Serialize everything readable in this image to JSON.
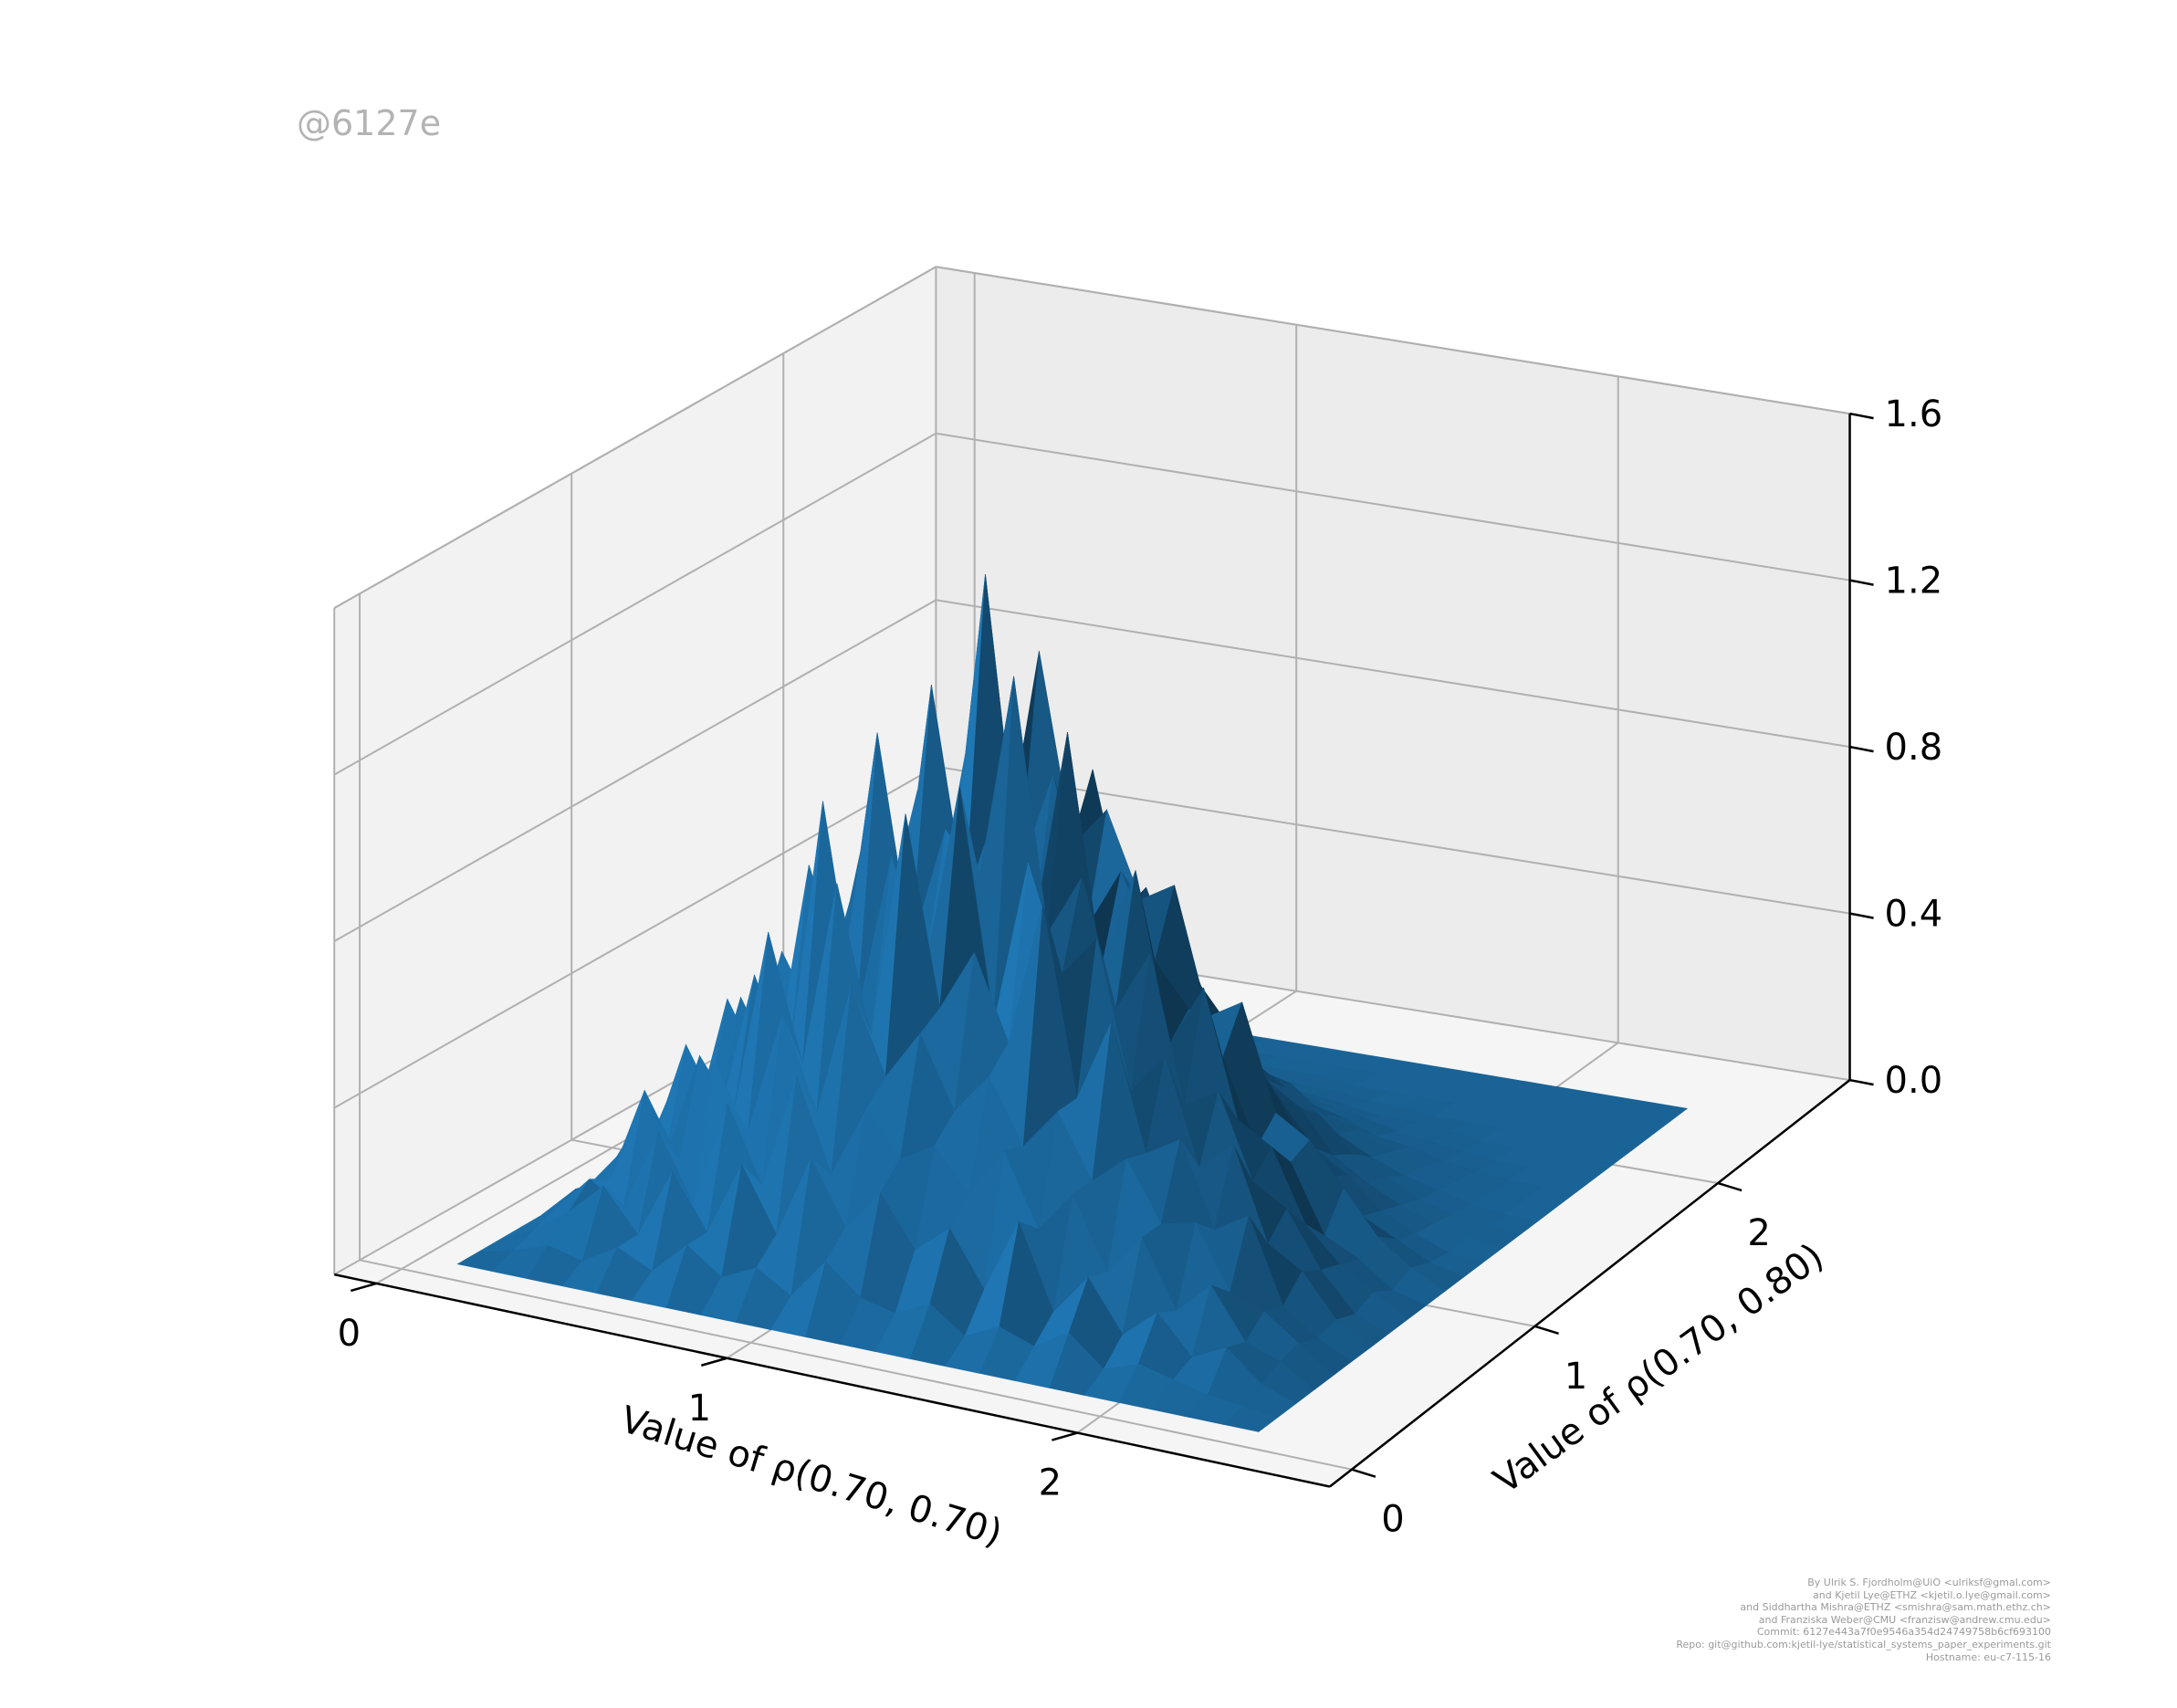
{
  "watermark": "@6127e",
  "credits": [
    "By Ulrik S. Fjordholm@UiO <ulriksf@gmal.com>",
    "and Kjetil Lye@ETHZ <kjetil.o.lye@gmail.com>",
    "and Siddhartha Mishra@ETHZ <smishra@sam.math.ethz.ch>",
    "and Franziska Weber@CMU <franzisw@andrew.cmu.edu>",
    "Commit: 6127e443a7f0e9546a354d24749758b6cf693100",
    "Repo: git@github.com:kjetil-lye/statistical_systems_paper_experiments.git",
    "Hostname: eu-c7-115-16"
  ],
  "colors": {
    "surface": "#1f77b4",
    "pane": "#f2f2f2",
    "grid": "#b0b0b0",
    "axis": "#000000",
    "watermark": "#b3b3b3",
    "credits": "#9a9a9a"
  },
  "chart_data": {
    "type": "surface3d",
    "title": "",
    "xlabel": "Value of ρ(0.70, 0.70)",
    "ylabel": "Value of ρ(0.70, 0.80)",
    "zlabel": "",
    "xlim": [
      0,
      2.6
    ],
    "ylim": [
      0,
      2.6
    ],
    "zlim": [
      0,
      1.6
    ],
    "x_ticks": [
      "0",
      "1",
      "2"
    ],
    "y_ticks": [
      "0",
      "1",
      "2"
    ],
    "z_ticks": [
      "0.0",
      "0.4",
      "0.8",
      "1.2",
      "1.6"
    ],
    "grid": true,
    "x": [
      0.1,
      0.2,
      0.3,
      0.4,
      0.5,
      0.6,
      0.7,
      0.8,
      0.9,
      1.0,
      1.1,
      1.2,
      1.3,
      1.4,
      1.5,
      1.6,
      1.7,
      1.8,
      1.9,
      2.0,
      2.1,
      2.2,
      2.3,
      2.4
    ],
    "y": [
      0.1,
      0.2,
      0.3,
      0.4,
      0.5,
      0.6,
      0.7,
      0.8,
      0.9,
      1.0,
      1.1,
      1.2,
      1.3,
      1.4,
      1.5,
      1.6,
      1.7,
      1.8,
      1.9,
      2.0,
      2.1,
      2.2,
      2.3,
      2.4
    ],
    "z": [
      [
        0.0,
        0.0,
        0.0,
        0.0,
        0.0,
        0.0,
        0.0,
        0.0,
        0.0,
        0.0,
        0.0,
        0.0,
        0.0,
        0.0,
        0.0,
        0.0,
        0.0,
        0.0,
        0.0,
        0.0,
        0.0,
        0.0,
        0.0,
        0.0
      ],
      [
        0.0,
        0.02,
        0.05,
        0.03,
        0.08,
        0.04,
        0.12,
        0.06,
        0.1,
        0.05,
        0.15,
        0.08,
        0.06,
        0.1,
        0.04,
        0.08,
        0.05,
        0.1,
        0.03,
        0.06,
        0.04,
        0.02,
        0.01,
        0.0
      ],
      [
        0.0,
        0.04,
        0.1,
        0.18,
        0.08,
        0.25,
        0.12,
        0.3,
        0.15,
        0.35,
        0.2,
        0.3,
        0.18,
        0.25,
        0.12,
        0.3,
        0.1,
        0.2,
        0.08,
        0.15,
        0.06,
        0.1,
        0.03,
        0.0
      ],
      [
        0.0,
        0.06,
        0.15,
        0.1,
        0.3,
        0.14,
        0.4,
        0.22,
        0.5,
        0.28,
        0.45,
        0.35,
        0.4,
        0.3,
        0.42,
        0.25,
        0.35,
        0.18,
        0.28,
        0.12,
        0.2,
        0.08,
        0.05,
        0.0
      ],
      [
        0.0,
        0.08,
        0.12,
        0.35,
        0.2,
        0.45,
        0.3,
        0.6,
        0.38,
        0.7,
        0.5,
        0.62,
        0.45,
        0.55,
        0.4,
        0.5,
        0.35,
        0.42,
        0.28,
        0.3,
        0.15,
        0.12,
        0.06,
        0.0
      ],
      [
        0.0,
        0.05,
        0.2,
        0.15,
        0.42,
        0.3,
        0.75,
        0.45,
        0.9,
        0.55,
        1.1,
        0.65,
        0.8,
        0.6,
        0.95,
        0.5,
        0.7,
        0.4,
        0.45,
        0.25,
        0.3,
        0.1,
        0.04,
        0.0
      ],
      [
        0.0,
        0.1,
        0.14,
        0.4,
        0.25,
        0.6,
        0.4,
        1.05,
        0.55,
        0.95,
        0.7,
        1.15,
        0.6,
        1.0,
        0.75,
        0.85,
        0.5,
        0.6,
        0.35,
        0.42,
        0.2,
        0.15,
        0.05,
        0.0
      ],
      [
        0.0,
        0.04,
        0.25,
        0.2,
        0.5,
        0.35,
        0.85,
        0.6,
        1.2,
        0.7,
        1.0,
        0.9,
        1.4,
        0.8,
        0.95,
        0.65,
        0.8,
        0.45,
        0.5,
        0.3,
        0.25,
        0.12,
        0.03,
        0.0
      ],
      [
        0.0,
        0.08,
        0.12,
        0.45,
        0.3,
        0.55,
        0.5,
        0.9,
        0.65,
        1.3,
        0.8,
        1.05,
        0.75,
        1.25,
        0.7,
        0.95,
        0.55,
        0.7,
        0.4,
        0.35,
        0.18,
        0.1,
        0.05,
        0.0
      ],
      [
        0.0,
        0.05,
        0.2,
        0.25,
        0.55,
        0.4,
        0.7,
        0.65,
        1.0,
        0.8,
        1.55,
        0.85,
        1.1,
        0.75,
        0.9,
        0.7,
        0.6,
        0.5,
        0.3,
        0.28,
        0.12,
        0.08,
        0.02,
        0.0
      ],
      [
        0.0,
        0.1,
        0.15,
        0.38,
        0.3,
        0.6,
        0.45,
        0.8,
        0.7,
        1.15,
        0.85,
        1.35,
        0.9,
        1.0,
        0.8,
        0.85,
        0.55,
        0.6,
        0.35,
        0.3,
        0.2,
        0.1,
        0.04,
        0.0
      ],
      [
        0.0,
        0.06,
        0.22,
        0.2,
        0.45,
        0.35,
        0.65,
        0.55,
        0.85,
        0.7,
        1.0,
        0.75,
        1.05,
        0.7,
        0.75,
        0.6,
        0.5,
        0.4,
        0.28,
        0.18,
        0.1,
        0.06,
        0.02,
        0.0
      ],
      [
        0.0,
        0.04,
        0.1,
        0.3,
        0.25,
        0.42,
        0.35,
        0.6,
        0.5,
        0.8,
        0.6,
        0.9,
        0.65,
        0.75,
        0.55,
        0.5,
        0.4,
        0.3,
        0.2,
        0.15,
        0.08,
        0.04,
        0.01,
        0.0
      ],
      [
        0.0,
        0.06,
        0.15,
        0.18,
        0.35,
        0.3,
        0.5,
        0.45,
        0.65,
        0.55,
        0.75,
        0.6,
        0.7,
        0.5,
        0.45,
        0.4,
        0.3,
        0.25,
        0.15,
        0.1,
        0.06,
        0.03,
        0.02,
        0.0
      ],
      [
        0.0,
        0.03,
        0.08,
        0.2,
        0.22,
        0.35,
        0.3,
        0.45,
        0.4,
        0.55,
        0.5,
        0.6,
        0.45,
        0.55,
        0.35,
        0.3,
        0.25,
        0.2,
        0.12,
        0.08,
        0.04,
        0.02,
        0.01,
        0.0
      ],
      [
        0.0,
        0.05,
        0.1,
        0.12,
        0.25,
        0.2,
        0.35,
        0.3,
        0.45,
        0.4,
        0.5,
        0.42,
        0.4,
        0.35,
        0.3,
        0.22,
        0.18,
        0.12,
        0.08,
        0.05,
        0.03,
        0.01,
        0.0,
        0.0
      ],
      [
        0.0,
        0.02,
        0.06,
        0.1,
        0.15,
        0.18,
        0.2,
        0.28,
        0.25,
        0.35,
        0.3,
        0.32,
        0.28,
        0.25,
        0.2,
        0.18,
        0.12,
        0.1,
        0.06,
        0.04,
        0.02,
        0.01,
        0.0,
        0.0
      ],
      [
        0.0,
        0.03,
        0.05,
        0.08,
        0.1,
        0.14,
        0.15,
        0.2,
        0.18,
        0.22,
        0.2,
        0.22,
        0.18,
        0.16,
        0.12,
        0.1,
        0.08,
        0.05,
        0.04,
        0.02,
        0.01,
        0.0,
        0.0,
        0.0
      ],
      [
        0.0,
        0.01,
        0.03,
        0.05,
        0.06,
        0.08,
        0.1,
        0.12,
        0.1,
        0.14,
        0.12,
        0.13,
        0.1,
        0.09,
        0.08,
        0.06,
        0.05,
        0.03,
        0.02,
        0.01,
        0.0,
        0.0,
        0.0,
        0.0
      ],
      [
        0.0,
        0.01,
        0.02,
        0.03,
        0.04,
        0.05,
        0.05,
        0.07,
        0.06,
        0.08,
        0.07,
        0.07,
        0.06,
        0.05,
        0.04,
        0.03,
        0.02,
        0.02,
        0.01,
        0.0,
        0.0,
        0.0,
        0.0,
        0.0
      ],
      [
        0.0,
        0.0,
        0.01,
        0.02,
        0.02,
        0.03,
        0.03,
        0.04,
        0.03,
        0.04,
        0.04,
        0.03,
        0.03,
        0.02,
        0.02,
        0.01,
        0.01,
        0.0,
        0.0,
        0.0,
        0.0,
        0.0,
        0.0,
        0.0
      ],
      [
        0.0,
        0.0,
        0.0,
        0.01,
        0.01,
        0.01,
        0.02,
        0.02,
        0.02,
        0.02,
        0.02,
        0.01,
        0.01,
        0.01,
        0.0,
        0.0,
        0.0,
        0.0,
        0.0,
        0.0,
        0.0,
        0.0,
        0.0,
        0.0
      ],
      [
        0.0,
        0.0,
        0.0,
        0.0,
        0.0,
        0.0,
        0.01,
        0.01,
        0.01,
        0.01,
        0.0,
        0.0,
        0.0,
        0.0,
        0.0,
        0.0,
        0.0,
        0.0,
        0.0,
        0.0,
        0.0,
        0.0,
        0.0,
        0.0
      ],
      [
        0.0,
        0.0,
        0.0,
        0.0,
        0.0,
        0.0,
        0.0,
        0.0,
        0.0,
        0.0,
        0.0,
        0.0,
        0.0,
        0.0,
        0.0,
        0.0,
        0.0,
        0.0,
        0.0,
        0.0,
        0.0,
        0.0,
        0.0,
        0.0
      ]
    ]
  }
}
